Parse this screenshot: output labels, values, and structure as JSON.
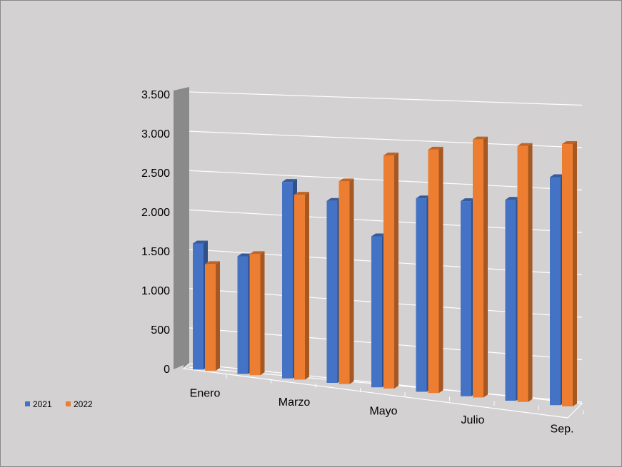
{
  "chart_data": {
    "type": "bar3d",
    "categories": [
      "Enero",
      null,
      "Marzo",
      null,
      "Mayo",
      null,
      "Julio",
      null,
      "Sep."
    ],
    "series": [
      {
        "name": "2021",
        "color": "#4472c4",
        "values": [
          1600,
          1480,
          2450,
          2250,
          1850,
          2350,
          2350,
          2400,
          2700
        ]
      },
      {
        "name": "2022",
        "color": "#ed7d31",
        "values": [
          1350,
          1520,
          2300,
          2500,
          2850,
          2950,
          3100,
          3050,
          3100
        ]
      }
    ],
    "ylim": [
      0,
      3500
    ],
    "yticks": [
      0,
      {
        "value": 500,
        "label": "500"
      },
      {
        "value": 1000,
        "label": "1.000"
      },
      {
        "value": 1500,
        "label": "1.500"
      },
      {
        "value": 2000,
        "label": "2.000"
      },
      {
        "value": 2500,
        "label": "2.500"
      },
      {
        "value": 3000,
        "label": "3.000"
      },
      {
        "value": 3500,
        "label": "3.500"
      }
    ],
    "grid": true
  }
}
